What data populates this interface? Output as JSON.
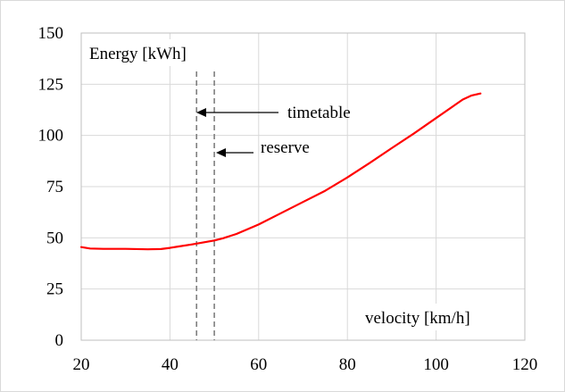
{
  "chart_data": {
    "type": "line",
    "ylabel": "Energy [kWh]",
    "xlabel": "velocity [km/h]",
    "xlim": [
      20,
      120
    ],
    "ylim": [
      0,
      150
    ],
    "xticks": [
      "20",
      "40",
      "60",
      "80",
      "100",
      "120"
    ],
    "yticks": [
      "0",
      "25",
      "50",
      "75",
      "100",
      "125",
      "150"
    ],
    "grid": true,
    "series": [
      {
        "color": "#ff0000",
        "x": [
          20,
          22,
          25,
          30,
          35,
          38,
          40,
          42,
          45,
          48,
          50,
          52,
          55,
          60,
          65,
          70,
          75,
          80,
          85,
          90,
          95,
          100,
          104,
          106,
          108,
          110
        ],
        "y": [
          45.5,
          44.8,
          44.6,
          44.6,
          44.4,
          44.5,
          45.1,
          45.8,
          46.8,
          47.9,
          48.7,
          49.8,
          51.9,
          56.5,
          62,
          67.5,
          73,
          79.5,
          86.5,
          93.8,
          101,
          108.5,
          114.5,
          117.5,
          119.5,
          120.5
        ]
      }
    ],
    "vlines": [
      {
        "x": 46,
        "color": "#7f7f7f",
        "style": "dashed"
      },
      {
        "x": 50,
        "color": "#7f7f7f",
        "style": "dashed"
      }
    ],
    "annotations": [
      {
        "text": "timetable",
        "arrow_to_x": 46,
        "y": 110
      },
      {
        "text": "reserve",
        "arrow_to_x": 50,
        "y": 91
      }
    ]
  }
}
